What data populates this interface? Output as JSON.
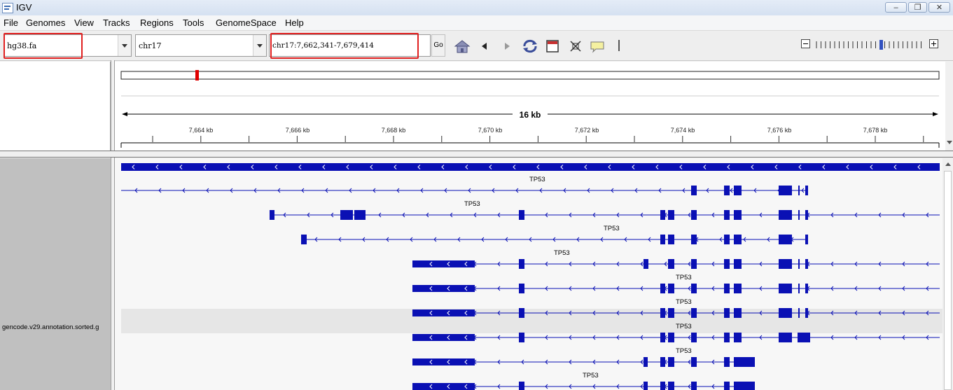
{
  "window": {
    "title": "IGV",
    "minimize": "‒",
    "restore": "❐",
    "close": "✕"
  },
  "menu": [
    "File",
    "Genomes",
    "View",
    "Tracks",
    "Regions",
    "Tools",
    "GenomeSpace",
    "Help"
  ],
  "toolbar": {
    "genome": "hg38.fa",
    "chromosome": "chr17",
    "locus": "chr17:7,662,341-7,679,414",
    "go_label": "Go",
    "icons": [
      "home-icon",
      "back-icon",
      "forward-icon",
      "refresh-icon",
      "region-of-interest-icon",
      "resize-to-window-icon",
      "popup-text-icon",
      "divider-icon"
    ]
  },
  "ruler": {
    "span_label": "16 kb",
    "ticks": [
      "7,664 kb",
      "7,666 kb",
      "7,668 kb",
      "7,670 kb",
      "7,672 kb",
      "7,674 kb",
      "7,676 kb",
      "7,678 kb"
    ]
  },
  "track": {
    "name": "gencode.v29.annotation.sorted.g",
    "gene_labels": [
      "TP53",
      "TP53",
      "TP53",
      "TP53",
      "TP53",
      "TP53",
      "TP53",
      "TP53",
      "TP53"
    ]
  },
  "colors": {
    "feature": "#0a10b4",
    "highlight_box": "#e02020",
    "cytoband_marker": "#e00000"
  }
}
